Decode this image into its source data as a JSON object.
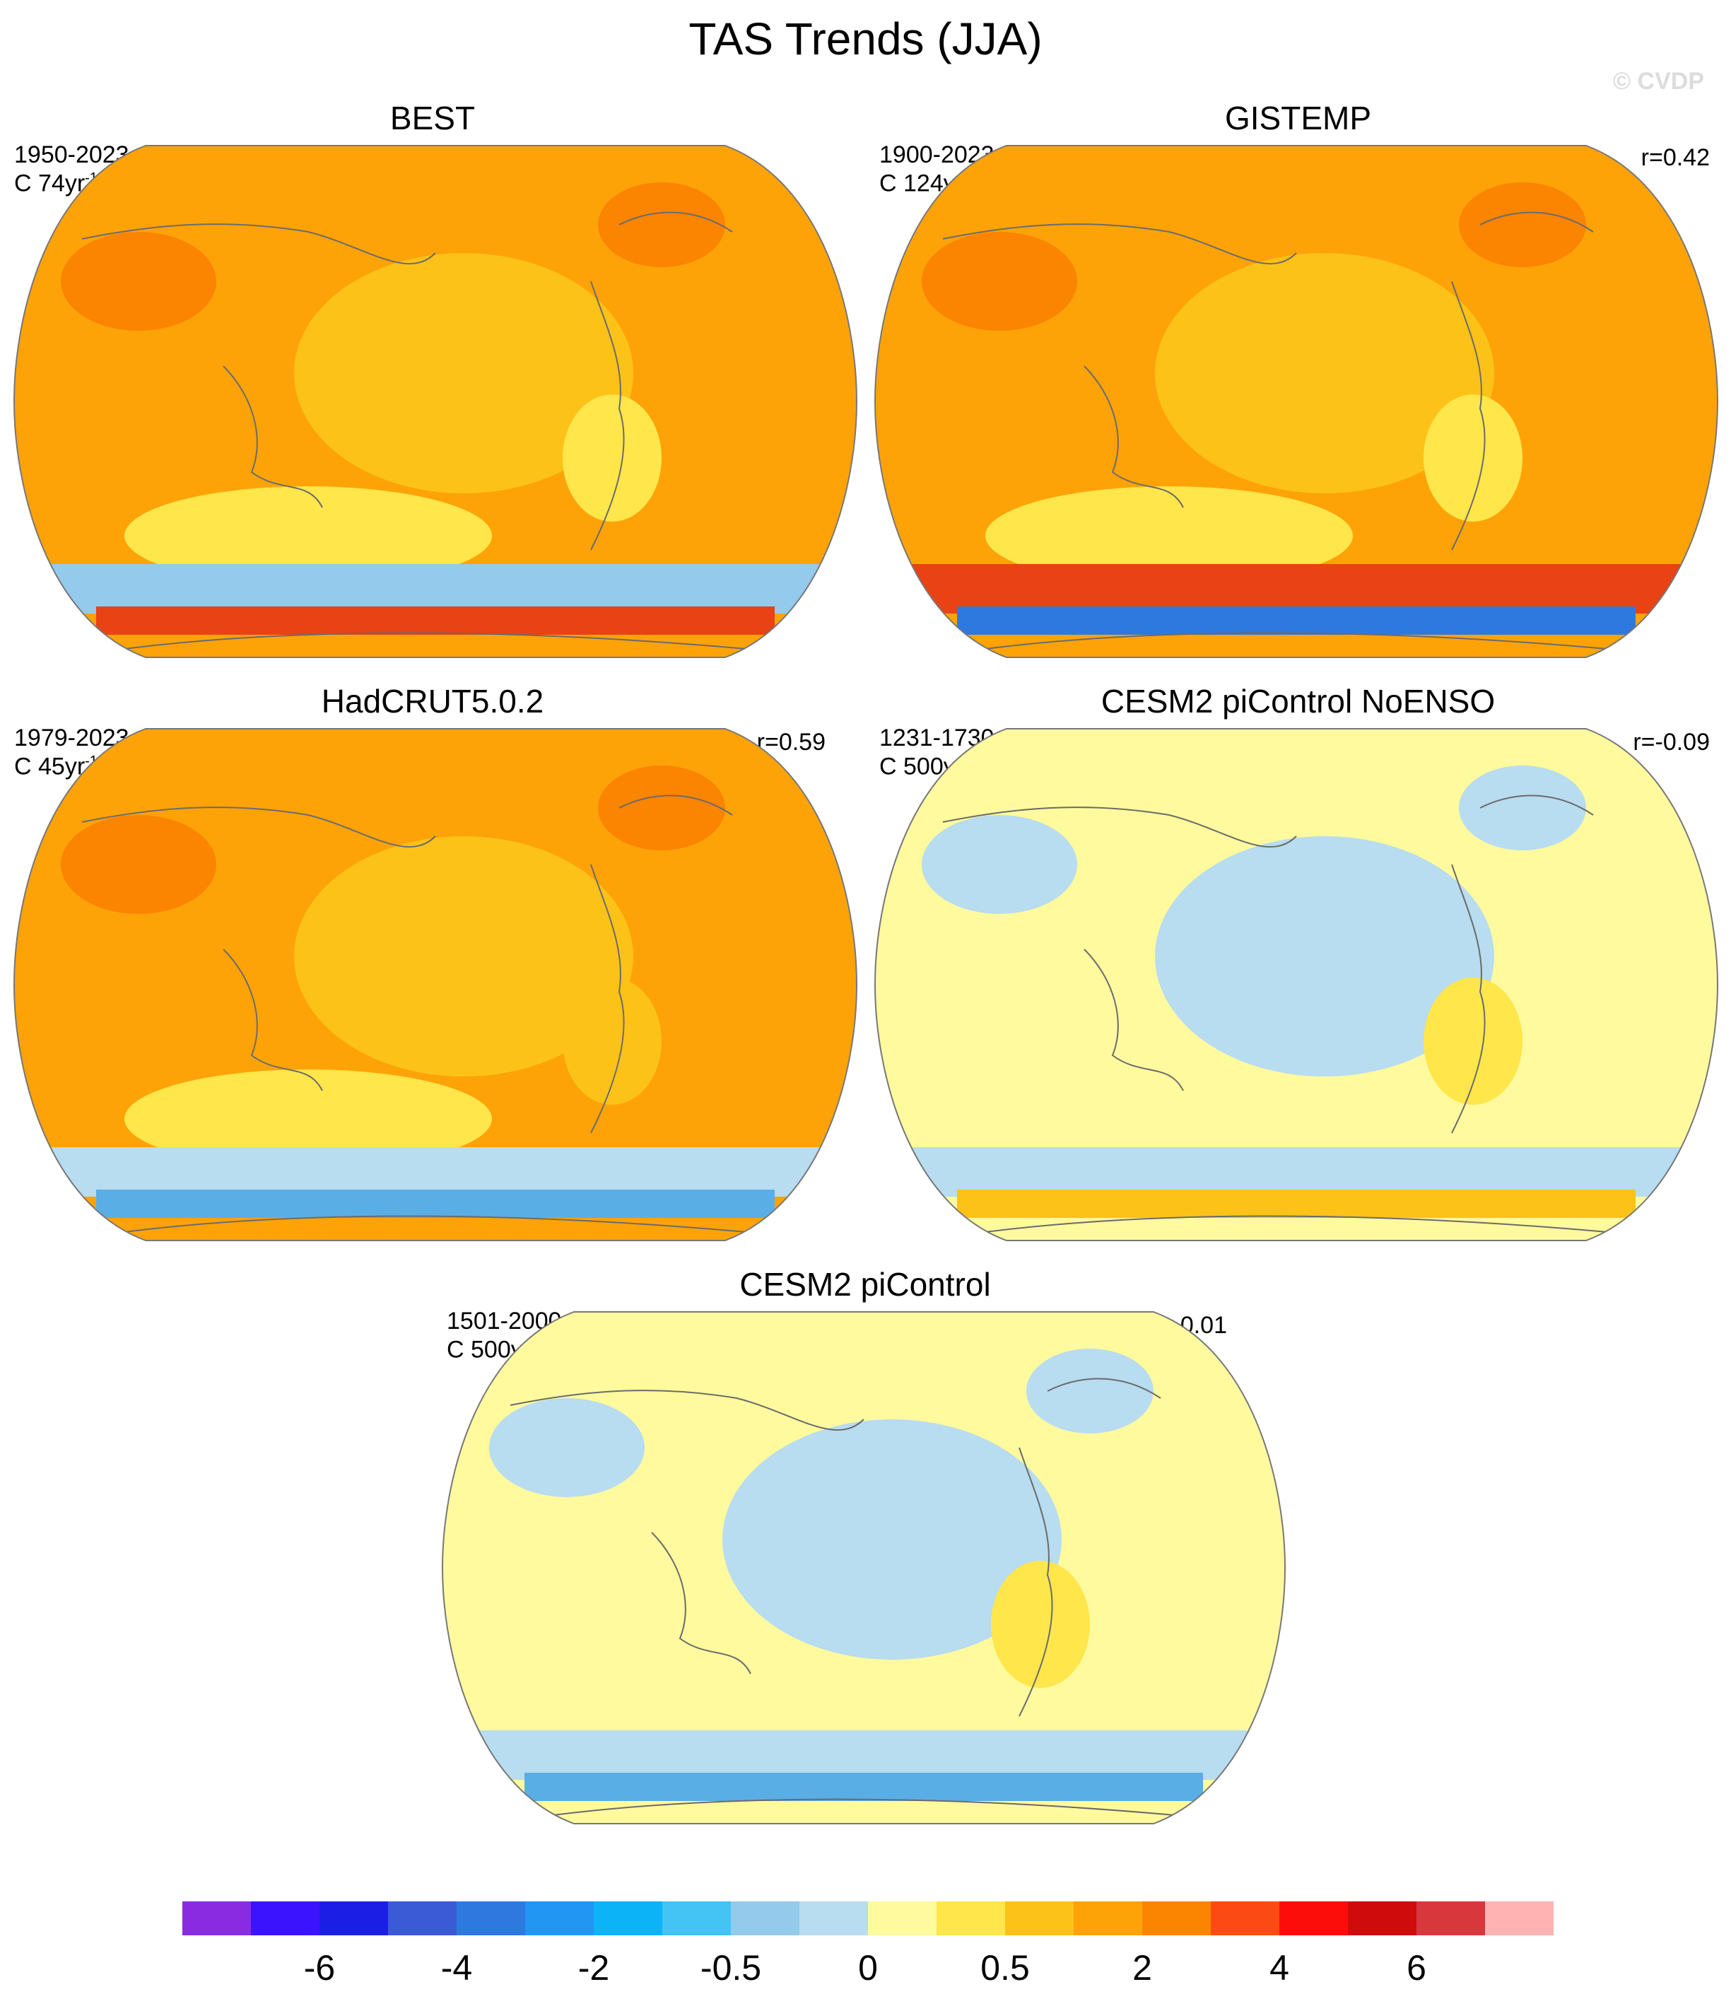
{
  "figure": {
    "title": "TAS Trends (JJA)",
    "watermark": "© CVDP"
  },
  "panels": [
    {
      "id": "best",
      "title": "BEST",
      "period": "1950-2023",
      "trend_unit": "C 74yr",
      "trend_exp": "-1",
      "r": "",
      "colors": {
        "base": "#fda308",
        "arc1": "#fdc218",
        "arc2": "#fee64b",
        "arc3": "#94caec",
        "arc4": "#e94214",
        "blob1": "#fb8400",
        "blob2": "#fee64b"
      }
    },
    {
      "id": "gistemp",
      "title": "GISTEMP",
      "period": "1900-2023",
      "trend_unit": "C 124yr",
      "trend_exp": "-1",
      "r": "r=0.42",
      "colors": {
        "base": "#fda308",
        "arc1": "#fdc218",
        "arc2": "#fee64b",
        "arc3": "#e94214",
        "arc4": "#2e79e0",
        "blob1": "#fb8400",
        "blob2": "#fee64b"
      }
    },
    {
      "id": "hadcrut",
      "title": "HadCRUT5.0.2",
      "period": "1979-2023",
      "trend_unit": "C 45yr",
      "trend_exp": "-1",
      "r": "r=0.59",
      "colors": {
        "base": "#fda308",
        "arc1": "#fdc218",
        "arc2": "#fee64b",
        "arc3": "#b8dcf0",
        "arc4": "#5aaee6",
        "blob1": "#fb8400",
        "blob2": "#fdc218"
      }
    },
    {
      "id": "noenso",
      "title": "CESM2 piControl NoENSO",
      "period": "1231-1730",
      "trend_unit": "C 500yr",
      "trend_exp": "-1",
      "r": "r=-0.09",
      "colors": {
        "base": "#fffa9e",
        "arc1": "#b8dcf0",
        "arc2": "#fffa9e",
        "arc3": "#b8dcf0",
        "arc4": "#fdc218",
        "blob1": "#b8dcf0",
        "blob2": "#fee64b"
      }
    },
    {
      "id": "picontrol",
      "title": "CESM2 piControl",
      "period": "1501-2000",
      "trend_unit": "C 500yr",
      "trend_exp": "-1",
      "r": "r=-0.01",
      "colors": {
        "base": "#fffa9e",
        "arc1": "#b8dcf0",
        "arc2": "#fffa9e",
        "arc3": "#b8dcf0",
        "arc4": "#5aaee6",
        "blob1": "#b8dcf0",
        "blob2": "#fee64b"
      }
    }
  ],
  "colorbar": {
    "colors": [
      "#8a2be2",
      "#3b13ff",
      "#1b1fe6",
      "#3b5ad6",
      "#2e79e0",
      "#2196f3",
      "#0cb3f6",
      "#44c3f5",
      "#94caec",
      "#b8dcf0",
      "#fffa9e",
      "#fee64b",
      "#fdc218",
      "#fda308",
      "#fb8400",
      "#fc4a14",
      "#fd0d0a",
      "#d00b0b",
      "#d8373c",
      "#ffb3b3"
    ],
    "labels": [
      "-6",
      "-4",
      "-2",
      "-0.5",
      "0",
      "0.5",
      "2",
      "4",
      "6"
    ]
  }
}
